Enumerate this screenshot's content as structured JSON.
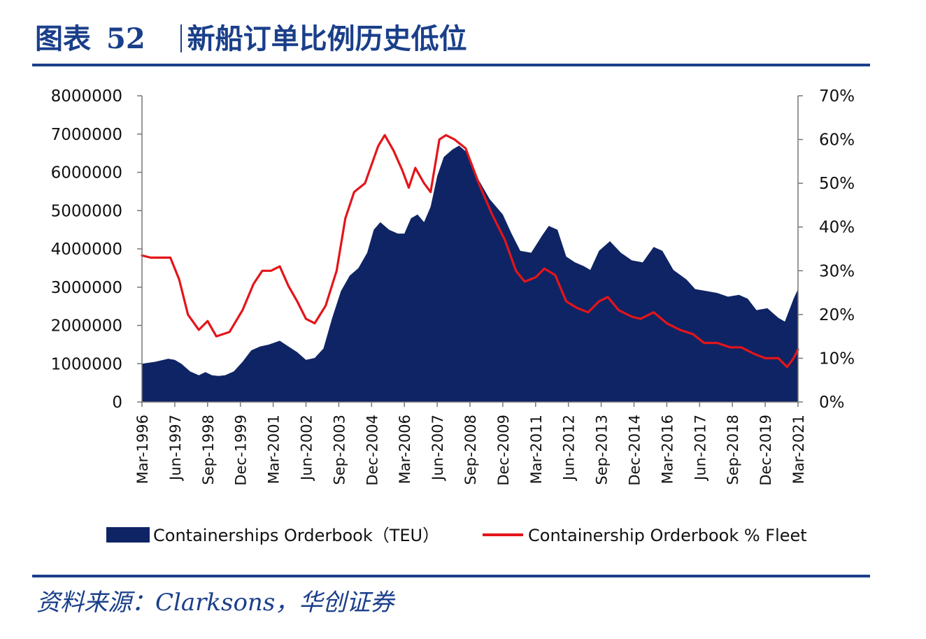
{
  "figure": {
    "label": "图表",
    "number": "52",
    "title": "新船订单比例历史低位"
  },
  "source": "资料来源：Clarksons，华创证券",
  "colors": {
    "area": "#0f2464",
    "line": "#e3151a",
    "title": "#1a3f8a"
  },
  "chart_data": {
    "type": "area",
    "xlabel": "",
    "ylabel": "",
    "y_left": {
      "range": [
        0,
        8000000
      ],
      "ticks": [
        0,
        1000000,
        2000000,
        3000000,
        4000000,
        5000000,
        6000000,
        7000000,
        8000000
      ],
      "tick_labels": [
        "0",
        "1000000",
        "2000000",
        "3000000",
        "4000000",
        "5000000",
        "6000000",
        "7000000",
        "8000000"
      ]
    },
    "y_right": {
      "range": [
        0,
        0.7
      ],
      "ticks": [
        0,
        0.1,
        0.2,
        0.3,
        0.4,
        0.5,
        0.6,
        0.7
      ],
      "tick_labels": [
        "0%",
        "10%",
        "20%",
        "30%",
        "40%",
        "50%",
        "60%",
        "70%"
      ]
    },
    "x_range": [
      "1996-03",
      "2021-03"
    ],
    "x_tick_labels": [
      "Mar-1996",
      "Jun-1997",
      "Sep-1998",
      "Dec-1999",
      "Mar-2001",
      "Jun-2002",
      "Sep-2003",
      "Dec-2004",
      "Mar-2006",
      "Jun-2007",
      "Sep-2008",
      "Dec-2009",
      "Mar-2011",
      "Jun-2012",
      "Sep-2013",
      "Dec-2014",
      "Mar-2016",
      "Jun-2017",
      "Sep-2018",
      "Dec-2019",
      "Mar-2021"
    ],
    "grid": false,
    "legend_position": "bottom",
    "series": [
      {
        "name": "Containerships Orderbook（TEU）",
        "type": "area",
        "axis": "left",
        "points": [
          [
            "1996-03",
            1000000
          ],
          [
            "1996-09",
            1050000
          ],
          [
            "1997-03",
            1130000
          ],
          [
            "1997-06",
            1100000
          ],
          [
            "1997-09",
            1000000
          ],
          [
            "1998-01",
            800000
          ],
          [
            "1998-05",
            700000
          ],
          [
            "1998-08",
            780000
          ],
          [
            "1998-11",
            700000
          ],
          [
            "1999-02",
            680000
          ],
          [
            "1999-05",
            700000
          ],
          [
            "1999-09",
            800000
          ],
          [
            "2000-01",
            1050000
          ],
          [
            "2000-05",
            1350000
          ],
          [
            "2000-09",
            1450000
          ],
          [
            "2001-01",
            1500000
          ],
          [
            "2001-06",
            1600000
          ],
          [
            "2001-10",
            1450000
          ],
          [
            "2002-02",
            1300000
          ],
          [
            "2002-06",
            1100000
          ],
          [
            "2002-10",
            1150000
          ],
          [
            "2003-02",
            1400000
          ],
          [
            "2003-06",
            2200000
          ],
          [
            "2003-10",
            2900000
          ],
          [
            "2004-02",
            3300000
          ],
          [
            "2004-06",
            3500000
          ],
          [
            "2004-10",
            3900000
          ],
          [
            "2005-01",
            4500000
          ],
          [
            "2005-04",
            4700000
          ],
          [
            "2005-08",
            4500000
          ],
          [
            "2005-12",
            4400000
          ],
          [
            "2006-03",
            4400000
          ],
          [
            "2006-06",
            4800000
          ],
          [
            "2006-09",
            4900000
          ],
          [
            "2006-12",
            4700000
          ],
          [
            "2007-03",
            5100000
          ],
          [
            "2007-06",
            5900000
          ],
          [
            "2007-09",
            6400000
          ],
          [
            "2008-01",
            6600000
          ],
          [
            "2008-04",
            6700000
          ],
          [
            "2008-08",
            6500000
          ],
          [
            "2009-01",
            5800000
          ],
          [
            "2009-06",
            5300000
          ],
          [
            "2009-12",
            4900000
          ],
          [
            "2010-04",
            4400000
          ],
          [
            "2010-08",
            3950000
          ],
          [
            "2011-01",
            3900000
          ],
          [
            "2011-06",
            4350000
          ],
          [
            "2011-09",
            4600000
          ],
          [
            "2012-01",
            4500000
          ],
          [
            "2012-05",
            3800000
          ],
          [
            "2012-09",
            3650000
          ],
          [
            "2013-01",
            3550000
          ],
          [
            "2013-04",
            3450000
          ],
          [
            "2013-08",
            3950000
          ],
          [
            "2014-01",
            4200000
          ],
          [
            "2014-06",
            3900000
          ],
          [
            "2014-11",
            3700000
          ],
          [
            "2015-04",
            3650000
          ],
          [
            "2015-09",
            4050000
          ],
          [
            "2016-01",
            3950000
          ],
          [
            "2016-06",
            3450000
          ],
          [
            "2016-12",
            3200000
          ],
          [
            "2017-04",
            2950000
          ],
          [
            "2017-09",
            2900000
          ],
          [
            "2018-02",
            2850000
          ],
          [
            "2018-07",
            2750000
          ],
          [
            "2018-12",
            2800000
          ],
          [
            "2019-04",
            2700000
          ],
          [
            "2019-08",
            2400000
          ],
          [
            "2020-01",
            2450000
          ],
          [
            "2020-06",
            2200000
          ],
          [
            "2020-09",
            2100000
          ],
          [
            "2021-01",
            2700000
          ],
          [
            "2021-03",
            2950000
          ]
        ]
      },
      {
        "name": "Containership Orderbook % Fleet",
        "type": "line",
        "axis": "right",
        "points": [
          [
            "1996-03",
            0.335
          ],
          [
            "1996-07",
            0.33
          ],
          [
            "1996-11",
            0.33
          ],
          [
            "1997-04",
            0.33
          ],
          [
            "1997-08",
            0.28
          ],
          [
            "1997-12",
            0.2
          ],
          [
            "1998-05",
            0.165
          ],
          [
            "1998-09",
            0.185
          ],
          [
            "1999-01",
            0.15
          ],
          [
            "1999-07",
            0.16
          ],
          [
            "2000-01",
            0.21
          ],
          [
            "2000-06",
            0.27
          ],
          [
            "2000-10",
            0.3
          ],
          [
            "2001-02",
            0.3
          ],
          [
            "2001-06",
            0.31
          ],
          [
            "2001-10",
            0.265
          ],
          [
            "2002-02",
            0.23
          ],
          [
            "2002-06",
            0.19
          ],
          [
            "2002-10",
            0.18
          ],
          [
            "2003-03",
            0.22
          ],
          [
            "2003-08",
            0.3
          ],
          [
            "2003-12",
            0.42
          ],
          [
            "2004-04",
            0.48
          ],
          [
            "2004-09",
            0.5
          ],
          [
            "2005-03",
            0.585
          ],
          [
            "2005-06",
            0.61
          ],
          [
            "2005-10",
            0.575
          ],
          [
            "2006-02",
            0.53
          ],
          [
            "2006-05",
            0.49
          ],
          [
            "2006-08",
            0.535
          ],
          [
            "2006-12",
            0.5
          ],
          [
            "2007-03",
            0.48
          ],
          [
            "2007-07",
            0.6
          ],
          [
            "2007-10",
            0.61
          ],
          [
            "2008-02",
            0.6
          ],
          [
            "2008-07",
            0.58
          ],
          [
            "2009-01",
            0.5
          ],
          [
            "2009-07",
            0.43
          ],
          [
            "2010-01",
            0.37
          ],
          [
            "2010-06",
            0.3
          ],
          [
            "2010-10",
            0.275
          ],
          [
            "2011-03",
            0.285
          ],
          [
            "2011-07",
            0.305
          ],
          [
            "2011-12",
            0.29
          ],
          [
            "2012-05",
            0.23
          ],
          [
            "2012-10",
            0.215
          ],
          [
            "2013-03",
            0.205
          ],
          [
            "2013-08",
            0.23
          ],
          [
            "2013-12",
            0.24
          ],
          [
            "2014-05",
            0.21
          ],
          [
            "2014-11",
            0.195
          ],
          [
            "2015-03",
            0.19
          ],
          [
            "2015-09",
            0.205
          ],
          [
            "2016-03",
            0.18
          ],
          [
            "2016-09",
            0.165
          ],
          [
            "2017-03",
            0.155
          ],
          [
            "2017-08",
            0.135
          ],
          [
            "2018-02",
            0.135
          ],
          [
            "2018-08",
            0.125
          ],
          [
            "2019-01",
            0.125
          ],
          [
            "2019-07",
            0.11
          ],
          [
            "2019-12",
            0.1
          ],
          [
            "2020-06",
            0.1
          ],
          [
            "2020-10",
            0.08
          ],
          [
            "2021-01",
            0.1
          ],
          [
            "2021-03",
            0.12
          ]
        ]
      }
    ]
  }
}
